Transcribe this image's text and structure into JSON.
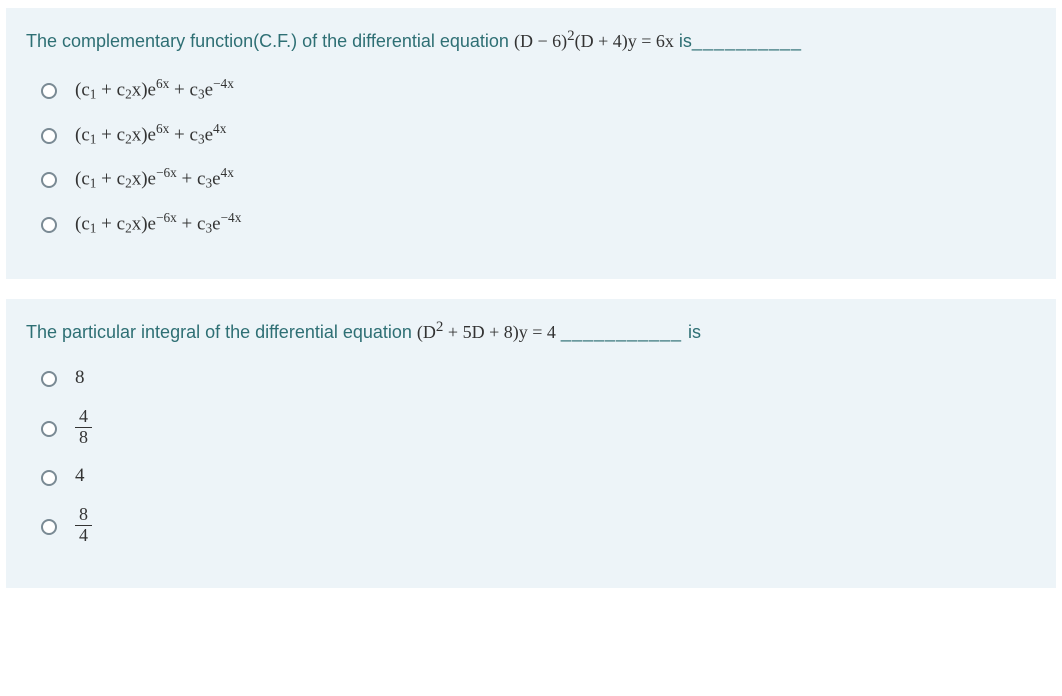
{
  "q1": {
    "prompt_before": "The complementary function(C.F.) of the differential equation",
    "equation": "(D − 6)<sup>2</sup>(D + 4)y = 6x",
    "prompt_after": " is",
    "blank": "__________",
    "options": [
      "(c<sub>1</sub> + c<sub>2</sub>x)e<sup>6x</sup> + c<sub>3</sub>e<sup>−4x</sup>",
      "(c<sub>1</sub> + c<sub>2</sub>x)e<sup>6x</sup> + c<sub>3</sub>e<sup>4x</sup>",
      "(c<sub>1</sub> + c<sub>2</sub>x)e<sup>−6x</sup> + c<sub>3</sub>e<sup>4x</sup>",
      "(c<sub>1</sub> + c<sub>2</sub>x)e<sup>−6x</sup> + c<sub>3</sub>e<sup>−4x</sup>"
    ]
  },
  "q2": {
    "prompt_before": "The particular integral of the differential equation ",
    "equation": "(D<sup>2</sup> + 5D + 8)y = 4",
    "blank": " ___________ ",
    "prompt_after": "is",
    "options": [
      {
        "type": "plain",
        "value": "8"
      },
      {
        "type": "frac",
        "num": "4",
        "den": "8"
      },
      {
        "type": "plain",
        "value": "4"
      },
      {
        "type": "frac",
        "num": "8",
        "den": "4"
      }
    ]
  },
  "colors": {
    "panel_bg": "#edf4f8",
    "text_teal": "#2e6f74",
    "math_color": "#333333",
    "radio_border": "#7a8a94"
  }
}
